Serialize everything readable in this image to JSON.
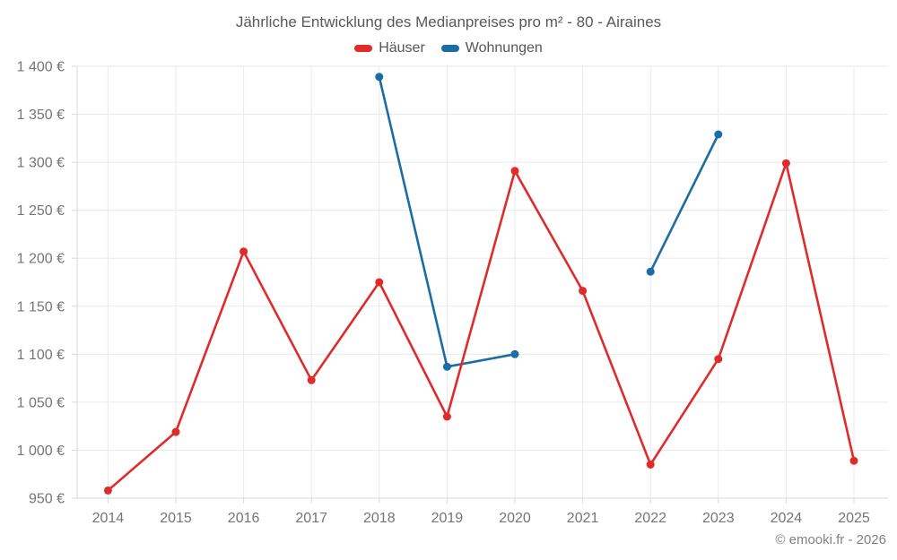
{
  "header": {
    "title": "Jährliche Entwicklung des Medianpreises pro m² - 80 - Airaines"
  },
  "footer": {
    "copyright": "© emooki.fr - 2026"
  },
  "colors": {
    "haeuser": "#e02b2b",
    "wohnungen": "#1b6da3",
    "grid": "#eaeaea",
    "axis": "#d9d9d9",
    "tick_label": "#757575",
    "title_text": "#595959",
    "legend_text": "#555555",
    "copyright_text": "#828282"
  },
  "chart_data": {
    "type": "line",
    "title": "Jährliche Entwicklung des Medianpreises pro m² - 80 - Airaines",
    "xlabel": "",
    "ylabel": "",
    "categories": [
      "2014",
      "2015",
      "2016",
      "2017",
      "2018",
      "2019",
      "2020",
      "2021",
      "2022",
      "2023",
      "2024",
      "2025"
    ],
    "series": [
      {
        "name": "Häuser",
        "color": "#e02b2b",
        "values": [
          958,
          1019,
          1207,
          1073,
          1175,
          1035,
          1291,
          1166,
          985,
          1095,
          1299,
          989
        ]
      },
      {
        "name": "Wohnungen",
        "color": "#1b6da3",
        "values": [
          null,
          null,
          null,
          null,
          1389,
          1087,
          1100,
          null,
          1186,
          1329,
          null,
          null
        ]
      }
    ],
    "ylim": [
      950,
      1400
    ],
    "ytick_values": [
      950,
      1000,
      1050,
      1100,
      1150,
      1200,
      1250,
      1300,
      1350,
      1400
    ],
    "ytick_labels": [
      "950 €",
      "1 000 €",
      "1 050 €",
      "1 100 €",
      "1 150 €",
      "1 200 €",
      "1 250 €",
      "1 300 €",
      "1 350 €",
      "1 400 €"
    ],
    "grid": true,
    "legend_position": "top"
  }
}
